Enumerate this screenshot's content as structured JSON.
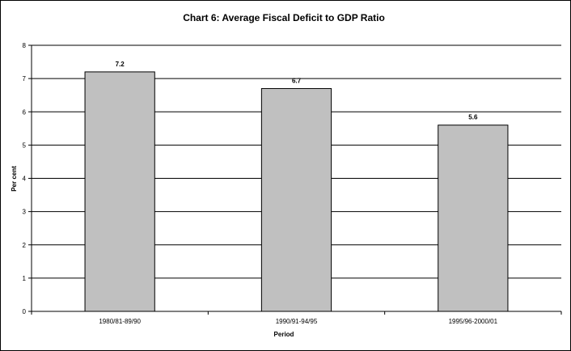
{
  "chart_data": {
    "type": "bar",
    "title": "Chart 6: Average Fiscal Deficit to GDP Ratio",
    "xlabel": "Period",
    "ylabel": "Per cent",
    "categories": [
      "1980/81-89/90",
      "1990/91-94/95",
      "1995/96-2000/01"
    ],
    "values": [
      7.2,
      6.7,
      5.6
    ],
    "data_labels": [
      "7.2",
      "6.7",
      "5.6"
    ],
    "ylim": [
      0,
      8
    ],
    "yticks": [
      "0",
      "1",
      "2",
      "3",
      "4",
      "5",
      "6",
      "7",
      "8"
    ],
    "grid": true,
    "legend": "none",
    "bar_color": "#c0c0c0"
  }
}
